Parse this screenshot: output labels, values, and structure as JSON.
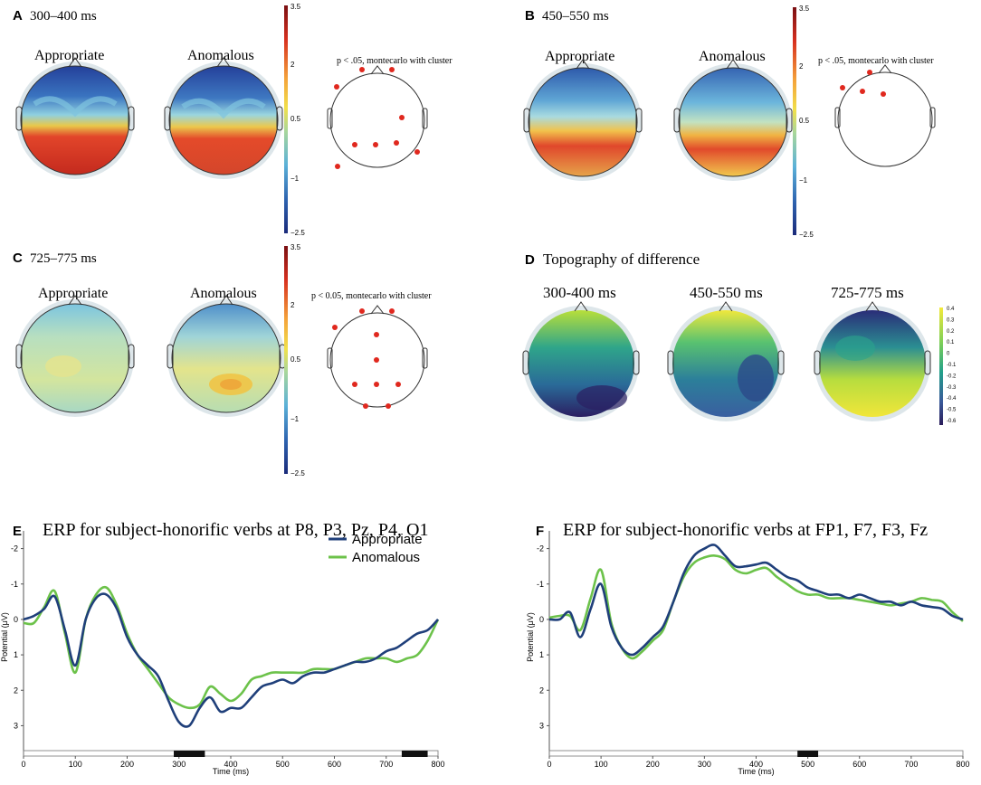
{
  "panels": {
    "A": {
      "letter": "A",
      "time": "300–400 ms",
      "cond1": "Appropriate",
      "cond2": "Anomalous",
      "stat": "p < .05, montecarlo with cluster"
    },
    "B": {
      "letter": "B",
      "time": "450–550 ms",
      "cond1": "Appropriate",
      "cond2": "Anomalous",
      "stat": "p < .05, montecarlo with cluster"
    },
    "C": {
      "letter": "C",
      "time": "725–775 ms",
      "cond1": "Appropriate",
      "cond2": "Anomalous",
      "stat": "p < 0.05, montecarlo with cluster"
    },
    "D": {
      "letter": "D",
      "title": "Topography of difference",
      "t1": "300-400 ms",
      "t2": "450-550 ms",
      "t3": "725-775 ms"
    }
  },
  "colorbar": {
    "ticks": [
      "3.5",
      "2",
      "0.5",
      "−1",
      "−2.5"
    ]
  },
  "diffbar": {
    "ticks": [
      "0.4",
      "0.3",
      "0.2",
      "0.1",
      "0",
      "-0.1",
      "-0.2",
      "-0.3",
      "-0.4",
      "-0.5",
      "-0.6"
    ]
  },
  "colors": {
    "appropriate": "#1f3f7a",
    "anomalous": "#6cc24a",
    "significance": "#111111",
    "electrode": "#e0281e"
  },
  "chart_data": [
    {
      "type": "line",
      "letter": "E",
      "title": "ERP for subject-honorific verbs at P8, P3, Pz, P4, O1",
      "xlabel": "Time (ms)",
      "ylabel": "Potential (μV)",
      "xlim": [
        0,
        800
      ],
      "ylim": [
        -2.5,
        3.5
      ],
      "y_inverted": true,
      "x_ticks": [
        "0",
        "100",
        "200",
        "300",
        "400",
        "500",
        "600",
        "700",
        "800"
      ],
      "y_ticks": [
        "-2",
        "-1",
        "0",
        "1",
        "2",
        "3"
      ],
      "legend": [
        "Appropriate",
        "Anomalous"
      ],
      "significant_windows": [
        [
          290,
          350
        ],
        [
          730,
          780
        ]
      ],
      "x": [
        0,
        20,
        40,
        60,
        80,
        100,
        120,
        140,
        160,
        180,
        200,
        220,
        240,
        260,
        280,
        300,
        320,
        340,
        360,
        380,
        400,
        420,
        440,
        460,
        480,
        500,
        520,
        540,
        560,
        580,
        600,
        620,
        640,
        660,
        680,
        700,
        720,
        740,
        760,
        780,
        800
      ],
      "series": [
        {
          "name": "Appropriate",
          "values": [
            0.0,
            -0.1,
            -0.3,
            -0.65,
            0.3,
            1.3,
            0.0,
            -0.6,
            -0.7,
            -0.3,
            0.5,
            1.0,
            1.3,
            1.6,
            2.3,
            2.9,
            3.0,
            2.5,
            2.2,
            2.6,
            2.5,
            2.5,
            2.2,
            1.9,
            1.8,
            1.7,
            1.8,
            1.6,
            1.5,
            1.5,
            1.4,
            1.3,
            1.2,
            1.2,
            1.1,
            0.9,
            0.8,
            0.6,
            0.4,
            0.3,
            0.0
          ]
        },
        {
          "name": "Anomalous",
          "values": [
            0.1,
            0.1,
            -0.35,
            -0.8,
            0.4,
            1.5,
            0.0,
            -0.7,
            -0.9,
            -0.4,
            0.4,
            1.0,
            1.4,
            1.8,
            2.2,
            2.4,
            2.5,
            2.4,
            1.9,
            2.1,
            2.3,
            2.1,
            1.7,
            1.6,
            1.5,
            1.5,
            1.5,
            1.5,
            1.4,
            1.4,
            1.4,
            1.3,
            1.2,
            1.1,
            1.1,
            1.1,
            1.2,
            1.1,
            1.0,
            0.6,
            0.0
          ]
        }
      ]
    },
    {
      "type": "line",
      "letter": "F",
      "title": "ERP for subject-honorific verbs at FP1, F7, F3, Fz",
      "xlabel": "Time (ms)",
      "ylabel": "Potential (μV)",
      "xlim": [
        0,
        800
      ],
      "ylim": [
        -2.5,
        3.5
      ],
      "y_inverted": true,
      "x_ticks": [
        "0",
        "100",
        "200",
        "300",
        "400",
        "500",
        "600",
        "700",
        "800"
      ],
      "y_ticks": [
        "-2",
        "-1",
        "0",
        "1",
        "2",
        "3"
      ],
      "legend": [],
      "significant_windows": [
        [
          480,
          520
        ]
      ],
      "x": [
        0,
        20,
        40,
        60,
        80,
        100,
        120,
        140,
        160,
        180,
        200,
        220,
        240,
        260,
        280,
        300,
        320,
        340,
        360,
        380,
        400,
        420,
        440,
        460,
        480,
        500,
        520,
        540,
        560,
        580,
        600,
        620,
        640,
        660,
        680,
        700,
        720,
        740,
        760,
        780,
        800
      ],
      "series": [
        {
          "name": "Appropriate",
          "values": [
            0.0,
            0.0,
            -0.2,
            0.5,
            -0.3,
            -1.0,
            0.2,
            0.8,
            1.0,
            0.8,
            0.5,
            0.2,
            -0.5,
            -1.3,
            -1.8,
            -2.0,
            -2.1,
            -1.8,
            -1.5,
            -1.5,
            -1.55,
            -1.6,
            -1.4,
            -1.2,
            -1.1,
            -0.9,
            -0.8,
            -0.7,
            -0.7,
            -0.6,
            -0.7,
            -0.6,
            -0.5,
            -0.5,
            -0.4,
            -0.5,
            -0.4,
            -0.35,
            -0.3,
            -0.1,
            0.0
          ]
        },
        {
          "name": "Anomalous",
          "values": [
            -0.05,
            -0.1,
            -0.1,
            0.3,
            -0.6,
            -1.4,
            0.1,
            0.8,
            1.1,
            0.9,
            0.6,
            0.3,
            -0.5,
            -1.2,
            -1.6,
            -1.75,
            -1.8,
            -1.7,
            -1.4,
            -1.3,
            -1.4,
            -1.45,
            -1.2,
            -1.0,
            -0.8,
            -0.7,
            -0.7,
            -0.6,
            -0.6,
            -0.6,
            -0.55,
            -0.5,
            -0.45,
            -0.4,
            -0.45,
            -0.5,
            -0.6,
            -0.55,
            -0.5,
            -0.2,
            0.05
          ]
        }
      ]
    }
  ]
}
